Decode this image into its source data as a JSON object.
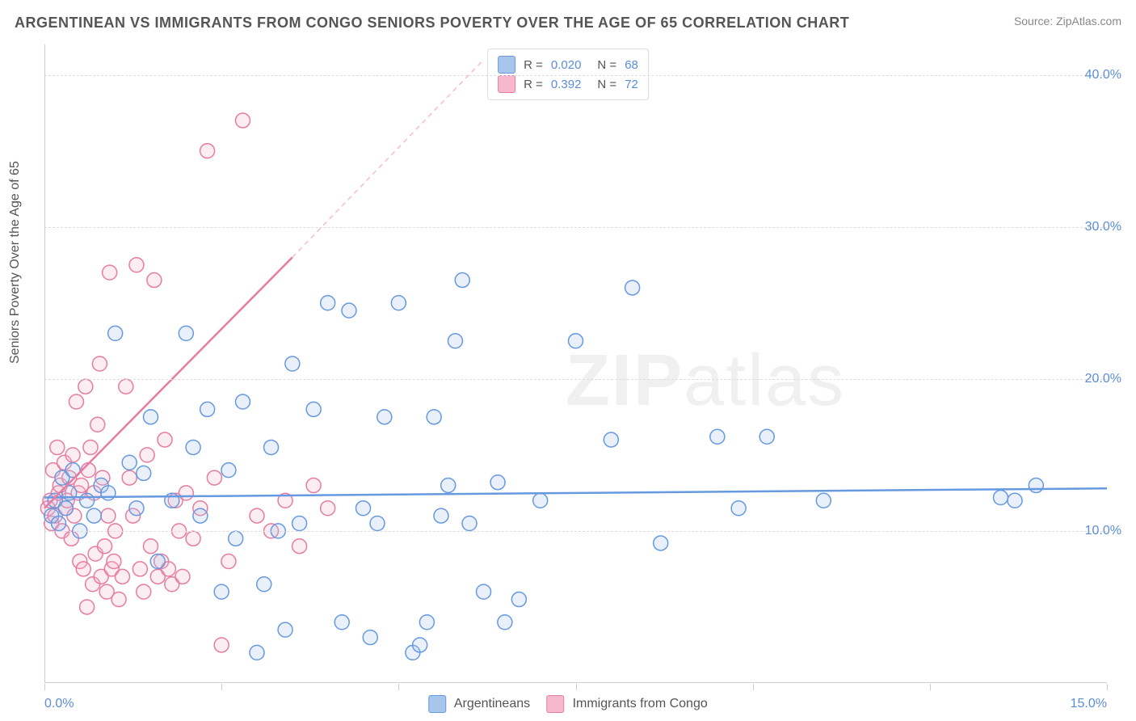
{
  "header": {
    "title": "ARGENTINEAN VS IMMIGRANTS FROM CONGO SENIORS POVERTY OVER THE AGE OF 65 CORRELATION CHART",
    "source": "Source: ZipAtlas.com"
  },
  "chart": {
    "type": "scatter",
    "y_axis_label": "Seniors Poverty Over the Age of 65",
    "xlim": [
      0.0,
      15.0
    ],
    "ylim": [
      0.0,
      42.0
    ],
    "y_ticks": [
      10.0,
      20.0,
      30.0,
      40.0
    ],
    "y_tick_labels": [
      "10.0%",
      "20.0%",
      "30.0%",
      "40.0%"
    ],
    "x_ticks": [
      0.0,
      2.5,
      5.0,
      7.5,
      10.0,
      12.5,
      15.0
    ],
    "x_tick_labels_shown": {
      "0.0": "0.0%",
      "15.0": "15.0%"
    },
    "grid_color": "#dddddd",
    "background_color": "#ffffff",
    "border_color": "#cccccc",
    "marker_radius": 9,
    "marker_stroke_width": 1.5,
    "marker_fill_opacity": 0.25,
    "trend_line_width": 2.5,
    "trend_dash_color_opacity": 0.5,
    "series": [
      {
        "name": "Argentineans",
        "key": "argentineans",
        "color": "#6699e0",
        "fill": "#a8c5eb",
        "R": "0.020",
        "N": "68",
        "trend": {
          "x1": 0.0,
          "y1": 12.2,
          "x2": 15.0,
          "y2": 12.8
        },
        "points": [
          [
            0.1,
            11.0
          ],
          [
            0.15,
            12.0
          ],
          [
            0.2,
            10.5
          ],
          [
            0.25,
            13.5
          ],
          [
            0.3,
            11.5
          ],
          [
            0.35,
            12.5
          ],
          [
            0.4,
            14.0
          ],
          [
            0.5,
            10.0
          ],
          [
            0.6,
            12.0
          ],
          [
            0.7,
            11.0
          ],
          [
            0.8,
            13.0
          ],
          [
            0.9,
            12.5
          ],
          [
            1.0,
            23.0
          ],
          [
            1.2,
            14.5
          ],
          [
            1.3,
            11.5
          ],
          [
            1.4,
            13.8
          ],
          [
            1.5,
            17.5
          ],
          [
            1.6,
            8.0
          ],
          [
            1.8,
            12.0
          ],
          [
            2.0,
            23.0
          ],
          [
            2.1,
            15.5
          ],
          [
            2.2,
            11.0
          ],
          [
            2.3,
            18.0
          ],
          [
            2.5,
            6.0
          ],
          [
            2.6,
            14.0
          ],
          [
            2.7,
            9.5
          ],
          [
            2.8,
            18.5
          ],
          [
            3.0,
            2.0
          ],
          [
            3.1,
            6.5
          ],
          [
            3.2,
            15.5
          ],
          [
            3.3,
            10.0
          ],
          [
            3.4,
            3.5
          ],
          [
            3.5,
            21.0
          ],
          [
            3.6,
            10.5
          ],
          [
            3.8,
            18.0
          ],
          [
            4.0,
            25.0
          ],
          [
            4.2,
            4.0
          ],
          [
            4.3,
            24.5
          ],
          [
            4.5,
            11.5
          ],
          [
            4.6,
            3.0
          ],
          [
            4.7,
            10.5
          ],
          [
            4.8,
            17.5
          ],
          [
            5.0,
            25.0
          ],
          [
            5.2,
            2.0
          ],
          [
            5.3,
            2.5
          ],
          [
            5.4,
            4.0
          ],
          [
            5.5,
            17.5
          ],
          [
            5.6,
            11.0
          ],
          [
            5.7,
            13.0
          ],
          [
            5.8,
            22.5
          ],
          [
            5.9,
            26.5
          ],
          [
            6.0,
            10.5
          ],
          [
            6.2,
            6.0
          ],
          [
            6.4,
            13.2
          ],
          [
            6.5,
            4.0
          ],
          [
            6.7,
            5.5
          ],
          [
            7.0,
            12.0
          ],
          [
            7.5,
            22.5
          ],
          [
            8.0,
            16.0
          ],
          [
            8.3,
            26.0
          ],
          [
            8.7,
            9.2
          ],
          [
            9.5,
            16.2
          ],
          [
            9.8,
            11.5
          ],
          [
            10.2,
            16.2
          ],
          [
            11.0,
            12.0
          ],
          [
            13.5,
            12.2
          ],
          [
            13.7,
            12.0
          ],
          [
            14.0,
            13.0
          ]
        ]
      },
      {
        "name": "Immigrants from Congo",
        "key": "congo",
        "color": "#e87ba0",
        "fill": "#f5b8cc",
        "R": "0.392",
        "N": "72",
        "trend": {
          "x1": 0.0,
          "y1": 11.5,
          "x2": 3.5,
          "y2": 28.0
        },
        "trend_dash": {
          "x1": 3.5,
          "y1": 28.0,
          "x2": 6.2,
          "y2": 41.0
        },
        "points": [
          [
            0.05,
            11.5
          ],
          [
            0.08,
            12.0
          ],
          [
            0.1,
            10.5
          ],
          [
            0.12,
            14.0
          ],
          [
            0.15,
            11.0
          ],
          [
            0.18,
            15.5
          ],
          [
            0.2,
            12.5
          ],
          [
            0.22,
            13.0
          ],
          [
            0.25,
            10.0
          ],
          [
            0.28,
            14.5
          ],
          [
            0.3,
            11.5
          ],
          [
            0.32,
            12.0
          ],
          [
            0.35,
            13.5
          ],
          [
            0.38,
            9.5
          ],
          [
            0.4,
            15.0
          ],
          [
            0.42,
            11.0
          ],
          [
            0.45,
            18.5
          ],
          [
            0.48,
            12.5
          ],
          [
            0.5,
            8.0
          ],
          [
            0.52,
            13.0
          ],
          [
            0.55,
            7.5
          ],
          [
            0.58,
            19.5
          ],
          [
            0.6,
            5.0
          ],
          [
            0.62,
            14.0
          ],
          [
            0.65,
            15.5
          ],
          [
            0.68,
            6.5
          ],
          [
            0.7,
            12.5
          ],
          [
            0.72,
            8.5
          ],
          [
            0.75,
            17.0
          ],
          [
            0.78,
            21.0
          ],
          [
            0.8,
            7.0
          ],
          [
            0.82,
            13.5
          ],
          [
            0.85,
            9.0
          ],
          [
            0.88,
            6.0
          ],
          [
            0.9,
            11.0
          ],
          [
            0.92,
            27.0
          ],
          [
            0.95,
            7.5
          ],
          [
            0.98,
            8.0
          ],
          [
            1.0,
            10.0
          ],
          [
            1.05,
            5.5
          ],
          [
            1.1,
            7.0
          ],
          [
            1.15,
            19.5
          ],
          [
            1.2,
            13.5
          ],
          [
            1.25,
            11.0
          ],
          [
            1.3,
            27.5
          ],
          [
            1.35,
            7.5
          ],
          [
            1.4,
            6.0
          ],
          [
            1.45,
            15.0
          ],
          [
            1.5,
            9.0
          ],
          [
            1.55,
            26.5
          ],
          [
            1.6,
            7.0
          ],
          [
            1.65,
            8.0
          ],
          [
            1.7,
            16.0
          ],
          [
            1.75,
            7.5
          ],
          [
            1.8,
            6.5
          ],
          [
            1.85,
            12.0
          ],
          [
            1.9,
            10.0
          ],
          [
            1.95,
            7.0
          ],
          [
            2.0,
            12.5
          ],
          [
            2.1,
            9.5
          ],
          [
            2.2,
            11.5
          ],
          [
            2.3,
            35.0
          ],
          [
            2.4,
            13.5
          ],
          [
            2.5,
            2.5
          ],
          [
            2.6,
            8.0
          ],
          [
            2.8,
            37.0
          ],
          [
            3.0,
            11.0
          ],
          [
            3.2,
            10.0
          ],
          [
            3.4,
            12.0
          ],
          [
            3.6,
            9.0
          ],
          [
            3.8,
            13.0
          ],
          [
            4.0,
            11.5
          ]
        ]
      }
    ],
    "legend_top_labels": {
      "R": "R =",
      "N": "N ="
    },
    "watermark": {
      "zip": "ZIP",
      "atlas": "atlas"
    }
  }
}
